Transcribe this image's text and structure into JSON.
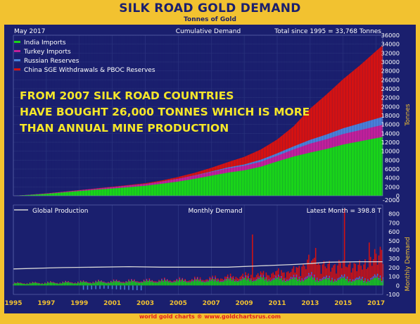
{
  "header": {
    "title": "SILK ROAD GOLD DEMAND",
    "subtitle": "Tonnes of Gold",
    "footer": "world gold charts ® www.goldchartsrus.com"
  },
  "colors": {
    "background": "#1a1f6e",
    "frame": "#f2c230",
    "india": "#19d419",
    "turkey": "#c0209a",
    "russia": "#4a7fd8",
    "china": "#d41212",
    "production": "#d8d8d8",
    "annotation": "#f5e62a",
    "text": "#ffffff"
  },
  "chart_data": [
    {
      "type": "area",
      "panel": "cumulative",
      "header_left": "May 2017",
      "header_center": "Cumulative Demand",
      "header_right": "Total since 1995 = 33,768 Tonnes",
      "ylabel": "Tonnes",
      "ylim": [
        0,
        36000
      ],
      "yticks": [
        0,
        2000,
        4000,
        6000,
        8000,
        10000,
        12000,
        14000,
        16000,
        18000,
        20000,
        22000,
        24000,
        26000,
        28000,
        30000,
        32000,
        34000,
        36000
      ],
      "legend_position": "top-left",
      "x": [
        1995,
        1996,
        1997,
        1998,
        1999,
        2000,
        2001,
        2002,
        2003,
        2004,
        2005,
        2006,
        2007,
        2008,
        2009,
        2010,
        2011,
        2012,
        2013,
        2014,
        2015,
        2016,
        2017.4
      ],
      "series": [
        {
          "name": "India Imports",
          "values": [
            0,
            200,
            450,
            750,
            1050,
            1350,
            1650,
            1950,
            2250,
            2700,
            3200,
            3800,
            4500,
            5200,
            5700,
            6500,
            7700,
            8800,
            9700,
            10500,
            11500,
            12200,
            13200
          ]
        },
        {
          "name": "Turkey Imports",
          "values": [
            0,
            30,
            70,
            120,
            170,
            230,
            290,
            350,
            410,
            500,
            600,
            710,
            820,
            940,
            1030,
            1130,
            1280,
            1600,
            2000,
            2200,
            2350,
            2500,
            2700
          ]
        },
        {
          "name": "Russian Reserves",
          "values": [
            0,
            0,
            0,
            0,
            0,
            0,
            0,
            0,
            0,
            0,
            30,
            70,
            120,
            200,
            300,
            450,
            550,
            700,
            860,
            1050,
            1300,
            1500,
            1800
          ]
        },
        {
          "name": "China SGE Withdrawals & PBOC Reserves",
          "values": [
            0,
            10,
            25,
            40,
            60,
            80,
            100,
            130,
            170,
            250,
            400,
            600,
            850,
            1200,
            1700,
            2300,
            3100,
            4500,
            7000,
            9000,
            11000,
            13000,
            16068
          ]
        }
      ],
      "annotation": "FROM 2007 SILK ROAD COUNTRIES HAVE BOUGHT  26,000 TONNES WHICH IS MORE THAN ANNUAL MINE PRODUCTION"
    },
    {
      "type": "bar",
      "panel": "monthly",
      "header_left": "Global Production",
      "header_center": "Monthly Demand",
      "header_right": "Latest Month = 398.8 T",
      "ylabel": "Monthly Demand",
      "ylim": [
        -100,
        900
      ],
      "yticks": [
        -100,
        0,
        100,
        200,
        300,
        400,
        500,
        600,
        700,
        800
      ],
      "top_axis_label": "-2000",
      "legend_position": "top-left",
      "x_range": [
        1995,
        2017.4
      ],
      "series": [
        {
          "name": "Global Production",
          "type": "line",
          "x": [
            1995,
            1998,
            2000,
            2002,
            2004,
            2006,
            2008,
            2010,
            2012,
            2013,
            2014,
            2016,
            2017.4
          ],
          "values": [
            185,
            200,
            205,
            210,
            205,
            205,
            205,
            220,
            235,
            245,
            260,
            265,
            265
          ]
        }
      ],
      "monthly_profile": {
        "x": [
          1995,
          2000,
          2005,
          2007,
          2010,
          2012,
          2013,
          2014,
          2015,
          2016,
          2017.4
        ],
        "india": [
          25,
          40,
          55,
          60,
          80,
          75,
          90,
          70,
          80,
          60,
          90
        ],
        "turkey": [
          4,
          8,
          10,
          12,
          12,
          15,
          25,
          10,
          10,
          10,
          12
        ],
        "russia": [
          0,
          0,
          2,
          4,
          6,
          8,
          10,
          12,
          15,
          14,
          18
        ],
        "china": [
          1,
          3,
          8,
          15,
          40,
          80,
          170,
          130,
          160,
          140,
          260
        ]
      },
      "spikes": [
        {
          "x": 2009.5,
          "value": 570
        },
        {
          "x": 2013.33,
          "value": 420
        },
        {
          "x": 2015.1,
          "value": 860
        },
        {
          "x": 2016.6,
          "value": 480
        },
        {
          "x": 2017.33,
          "value": 398.8
        }
      ],
      "xticks": [
        1995,
        1997,
        1999,
        2001,
        2003,
        2005,
        2007,
        2009,
        2011,
        2013,
        2015,
        2017
      ]
    }
  ]
}
